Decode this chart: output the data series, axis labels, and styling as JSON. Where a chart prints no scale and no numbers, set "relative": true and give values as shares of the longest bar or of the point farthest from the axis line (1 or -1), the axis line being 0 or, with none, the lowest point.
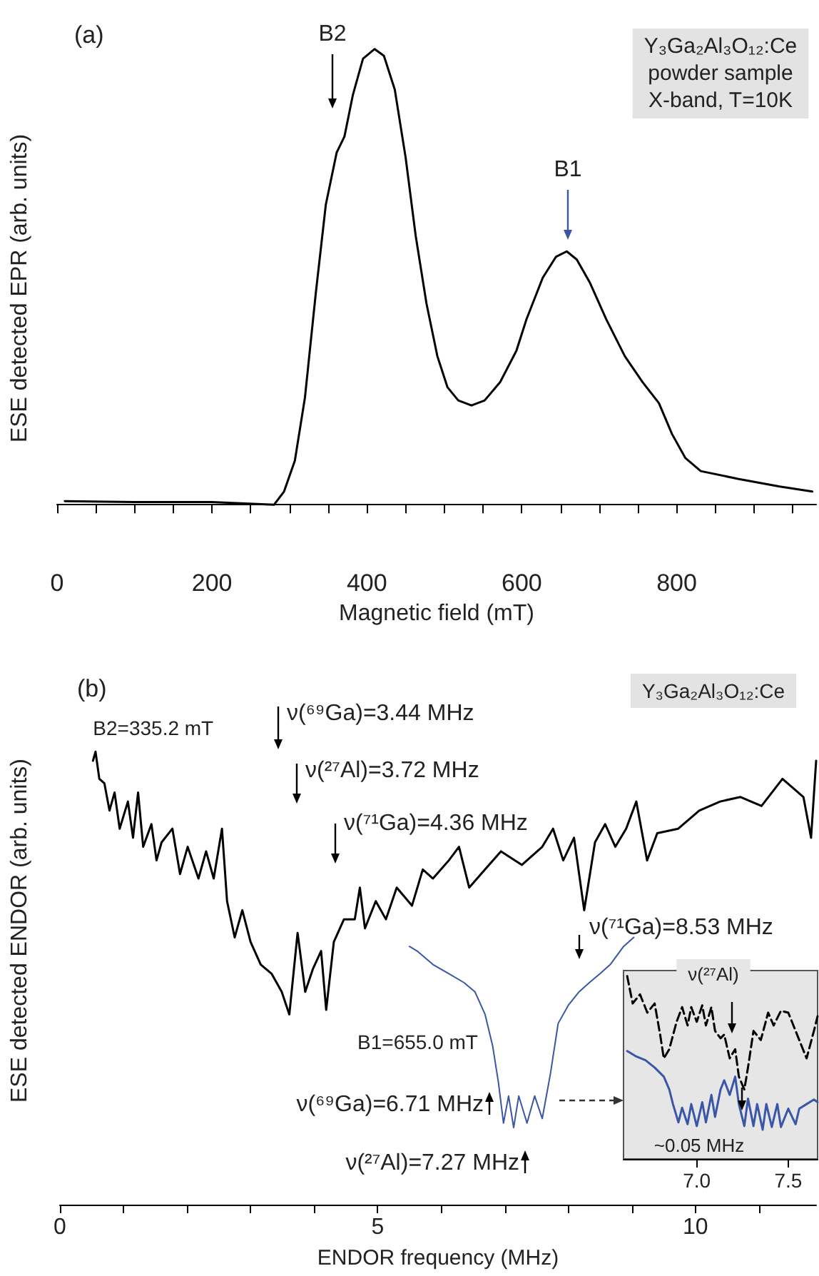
{
  "chart_data": [
    {
      "type": "line",
      "xlabel": "Magnetic field (mT)",
      "ylabel": "ESE detected EPR (arb. units)",
      "relative": true,
      "legend": false,
      "grid": false,
      "marker": "none",
      "line_style": "solid",
      "xlim": [
        0,
        980
      ],
      "xticks": [
        0,
        {
          "value": 50,
          "label": null
        },
        {
          "value": 100,
          "label": null
        },
        {
          "value": 150,
          "label": null
        },
        200,
        {
          "value": 250,
          "label": null
        },
        {
          "value": 300,
          "label": null
        },
        {
          "value": 350,
          "label": null
        },
        400,
        {
          "value": 450,
          "label": null
        },
        {
          "value": 500,
          "label": null
        },
        {
          "value": 550,
          "label": null
        },
        600,
        {
          "value": 650,
          "label": null
        },
        {
          "value": 700,
          "label": null
        },
        {
          "value": 750,
          "label": null
        },
        800,
        {
          "value": 850,
          "label": null
        },
        {
          "value": 900,
          "label": null
        },
        {
          "value": 950,
          "label": null
        }
      ],
      "series": [
        {
          "color": "#000000",
          "x": [
            10,
            100,
            200,
            280,
            293,
            307,
            320,
            334,
            347,
            361,
            371,
            382,
            395,
            410,
            422,
            436,
            450,
            463,
            477,
            491,
            504,
            518,
            535,
            552,
            572,
            593,
            606,
            627,
            644,
            658,
            671,
            688,
            709,
            733,
            756,
            777,
            794,
            811,
            831,
            879,
            933,
            975
          ],
          "values": [
            0.008,
            0.006,
            0.006,
            0,
            0.029,
            0.097,
            0.235,
            0.464,
            0.659,
            0.773,
            0.808,
            0.9,
            0.979,
            1,
            0.985,
            0.911,
            0.762,
            0.59,
            0.441,
            0.326,
            0.258,
            0.229,
            0.218,
            0.229,
            0.269,
            0.338,
            0.407,
            0.498,
            0.544,
            0.556,
            0.538,
            0.487,
            0.407,
            0.326,
            0.269,
            0.223,
            0.155,
            0.103,
            0.074,
            0.057,
            0.04,
            0.029
          ]
        }
      ],
      "annotations": [
        "(a)",
        "Y₃Ga₂Al₃O₁₂:Ce\npowder sample\nX-band, T=10K",
        "B2",
        "B1"
      ]
    },
    {
      "type": "line",
      "xlabel": "ENDOR frequency (MHz)",
      "ylabel": "ESE detected ENDOR (arb. units)",
      "relative": true,
      "legend": false,
      "grid": false,
      "marker": "none",
      "line_style": "solid",
      "xlim": [
        0,
        11.9
      ],
      "xticks": [
        0,
        {
          "value": 1,
          "label": null
        },
        {
          "value": 2,
          "label": null
        },
        {
          "value": 3,
          "label": null
        },
        {
          "value": 4,
          "label": null
        },
        5,
        {
          "value": 6,
          "label": null
        },
        {
          "value": 7,
          "label": null
        },
        {
          "value": 8,
          "label": null
        },
        {
          "value": 9,
          "label": null
        },
        10,
        {
          "value": 11,
          "label": null
        }
      ],
      "series": [
        {
          "name": "B2=335.2 mT",
          "color": "#000000",
          "x": [
            0.52,
            0.56,
            0.62,
            0.7,
            0.78,
            0.86,
            0.94,
            1.07,
            1.15,
            1.23,
            1.31,
            1.44,
            1.52,
            1.6,
            1.77,
            1.89,
            2.01,
            2.18,
            2.3,
            2.42,
            2.55,
            2.63,
            2.75,
            2.87,
            3.0,
            3.16,
            3.33,
            3.49,
            3.61,
            3.74,
            3.86,
            3.98,
            4.11,
            4.19,
            4.31,
            4.47,
            4.64,
            4.72,
            4.8,
            4.97,
            5.13,
            5.3,
            5.54,
            5.71,
            5.87,
            6.12,
            6.28,
            6.44,
            6.69,
            6.94,
            7.27,
            7.59,
            7.76,
            7.92,
            8.09,
            8.25,
            8.42,
            8.58,
            8.74,
            8.91,
            9.07,
            9.24,
            9.4,
            9.73,
            10.06,
            10.39,
            10.71,
            11.04,
            11.37,
            11.7,
            11.82,
            11.9
          ],
          "values": [
            0.98,
            1.0,
            0.94,
            0.93,
            0.87,
            0.91,
            0.83,
            0.89,
            0.81,
            0.91,
            0.79,
            0.84,
            0.76,
            0.8,
            0.83,
            0.73,
            0.79,
            0.72,
            0.78,
            0.72,
            0.83,
            0.67,
            0.59,
            0.65,
            0.58,
            0.53,
            0.51,
            0.47,
            0.42,
            0.6,
            0.47,
            0.52,
            0.56,
            0.43,
            0.58,
            0.63,
            0.63,
            0.7,
            0.61,
            0.67,
            0.63,
            0.7,
            0.66,
            0.74,
            0.72,
            0.76,
            0.79,
            0.7,
            0.74,
            0.78,
            0.75,
            0.79,
            0.83,
            0.76,
            0.81,
            0.65,
            0.8,
            0.84,
            0.79,
            0.83,
            0.89,
            0.76,
            0.82,
            0.83,
            0.87,
            0.89,
            0.9,
            0.88,
            0.94,
            0.9,
            0.81,
            0.98
          ]
        },
        {
          "name": "B1=655.0 mT",
          "color": "#3a56a6",
          "x": [
            5.5,
            5.62,
            5.87,
            6.12,
            6.36,
            6.53,
            6.69,
            6.81,
            6.9,
            6.98,
            7.06,
            7.14,
            7.22,
            7.35,
            7.47,
            7.59,
            7.72,
            7.84,
            8.0,
            8.17,
            8.33,
            8.5,
            8.66,
            8.87,
            9.03
          ],
          "values": [
            0.57,
            0.56,
            0.53,
            0.51,
            0.49,
            0.47,
            0.42,
            0.35,
            0.27,
            0.18,
            0.24,
            0.17,
            0.24,
            0.18,
            0.24,
            0.19,
            0.29,
            0.4,
            0.44,
            0.47,
            0.49,
            0.51,
            0.53,
            0.57,
            0.59
          ]
        }
      ],
      "annotations": [
        "(b)",
        "Y₃Ga₂Al₃O₁₂:Ce",
        "ν(⁶⁹Ga)=3.44 MHz",
        "ν(²⁷Al)=3.72 MHz",
        "ν(⁷¹Ga)=4.36 MHz",
        "ν(⁷¹Ga)=8.53 MHz",
        "ν(⁶⁹Ga)=6.71 MHz",
        "ν(²⁷Al)=7.27 MHz"
      ]
    },
    {
      "type": "line",
      "relative": true,
      "legend": false,
      "grid": false,
      "marker": "none",
      "xlim": [
        6.6,
        7.66
      ],
      "xticks": [
        {
          "value": 7,
          "label": "7.0"
        },
        7.5
      ],
      "series": [
        {
          "color": "#000000",
          "line_style": "dashed",
          "x": [
            6.62,
            6.65,
            6.69,
            6.73,
            6.77,
            6.8,
            6.82,
            6.85,
            6.89,
            6.92,
            6.95,
            6.97,
            7.0,
            7.03,
            7.05,
            7.08,
            7.1,
            7.13,
            7.15,
            7.18,
            7.21,
            7.23,
            7.26,
            7.28,
            7.31,
            7.35,
            7.39,
            7.42,
            7.46,
            7.5,
            7.54,
            7.58,
            7.6,
            7.64,
            7.66
          ],
          "values": [
            1.0,
            0.85,
            0.9,
            0.8,
            0.85,
            0.68,
            0.55,
            0.6,
            0.75,
            0.83,
            0.73,
            0.83,
            0.75,
            0.84,
            0.73,
            0.83,
            0.7,
            0.66,
            0.68,
            0.55,
            0.6,
            0.45,
            0.38,
            0.5,
            0.7,
            0.65,
            0.8,
            0.73,
            0.81,
            0.8,
            0.7,
            0.6,
            0.55,
            0.7,
            0.78
          ]
        },
        {
          "color": "#3a56a6",
          "line_style": "solid",
          "x": [
            6.62,
            6.67,
            6.72,
            6.77,
            6.82,
            6.85,
            6.87,
            6.9,
            6.92,
            6.95,
            6.97,
            7.0,
            7.03,
            7.05,
            7.08,
            7.1,
            7.13,
            7.15,
            7.18,
            7.21,
            7.23,
            7.26,
            7.28,
            7.31,
            7.33,
            7.36,
            7.38,
            7.41,
            7.44,
            7.46,
            7.5,
            7.54,
            7.56,
            7.6,
            7.64,
            7.66
          ],
          "values": [
            0.59,
            0.56,
            0.54,
            0.5,
            0.45,
            0.38,
            0.3,
            0.2,
            0.28,
            0.19,
            0.3,
            0.18,
            0.31,
            0.2,
            0.35,
            0.23,
            0.38,
            0.43,
            0.35,
            0.45,
            0.3,
            0.18,
            0.33,
            0.18,
            0.3,
            0.16,
            0.3,
            0.175,
            0.3,
            0.175,
            0.275,
            0.19,
            0.275,
            0.3,
            0.325,
            0.31
          ]
        }
      ],
      "annotations": [
        "~0.05 MHz",
        "ν(²⁷Al)"
      ]
    }
  ]
}
